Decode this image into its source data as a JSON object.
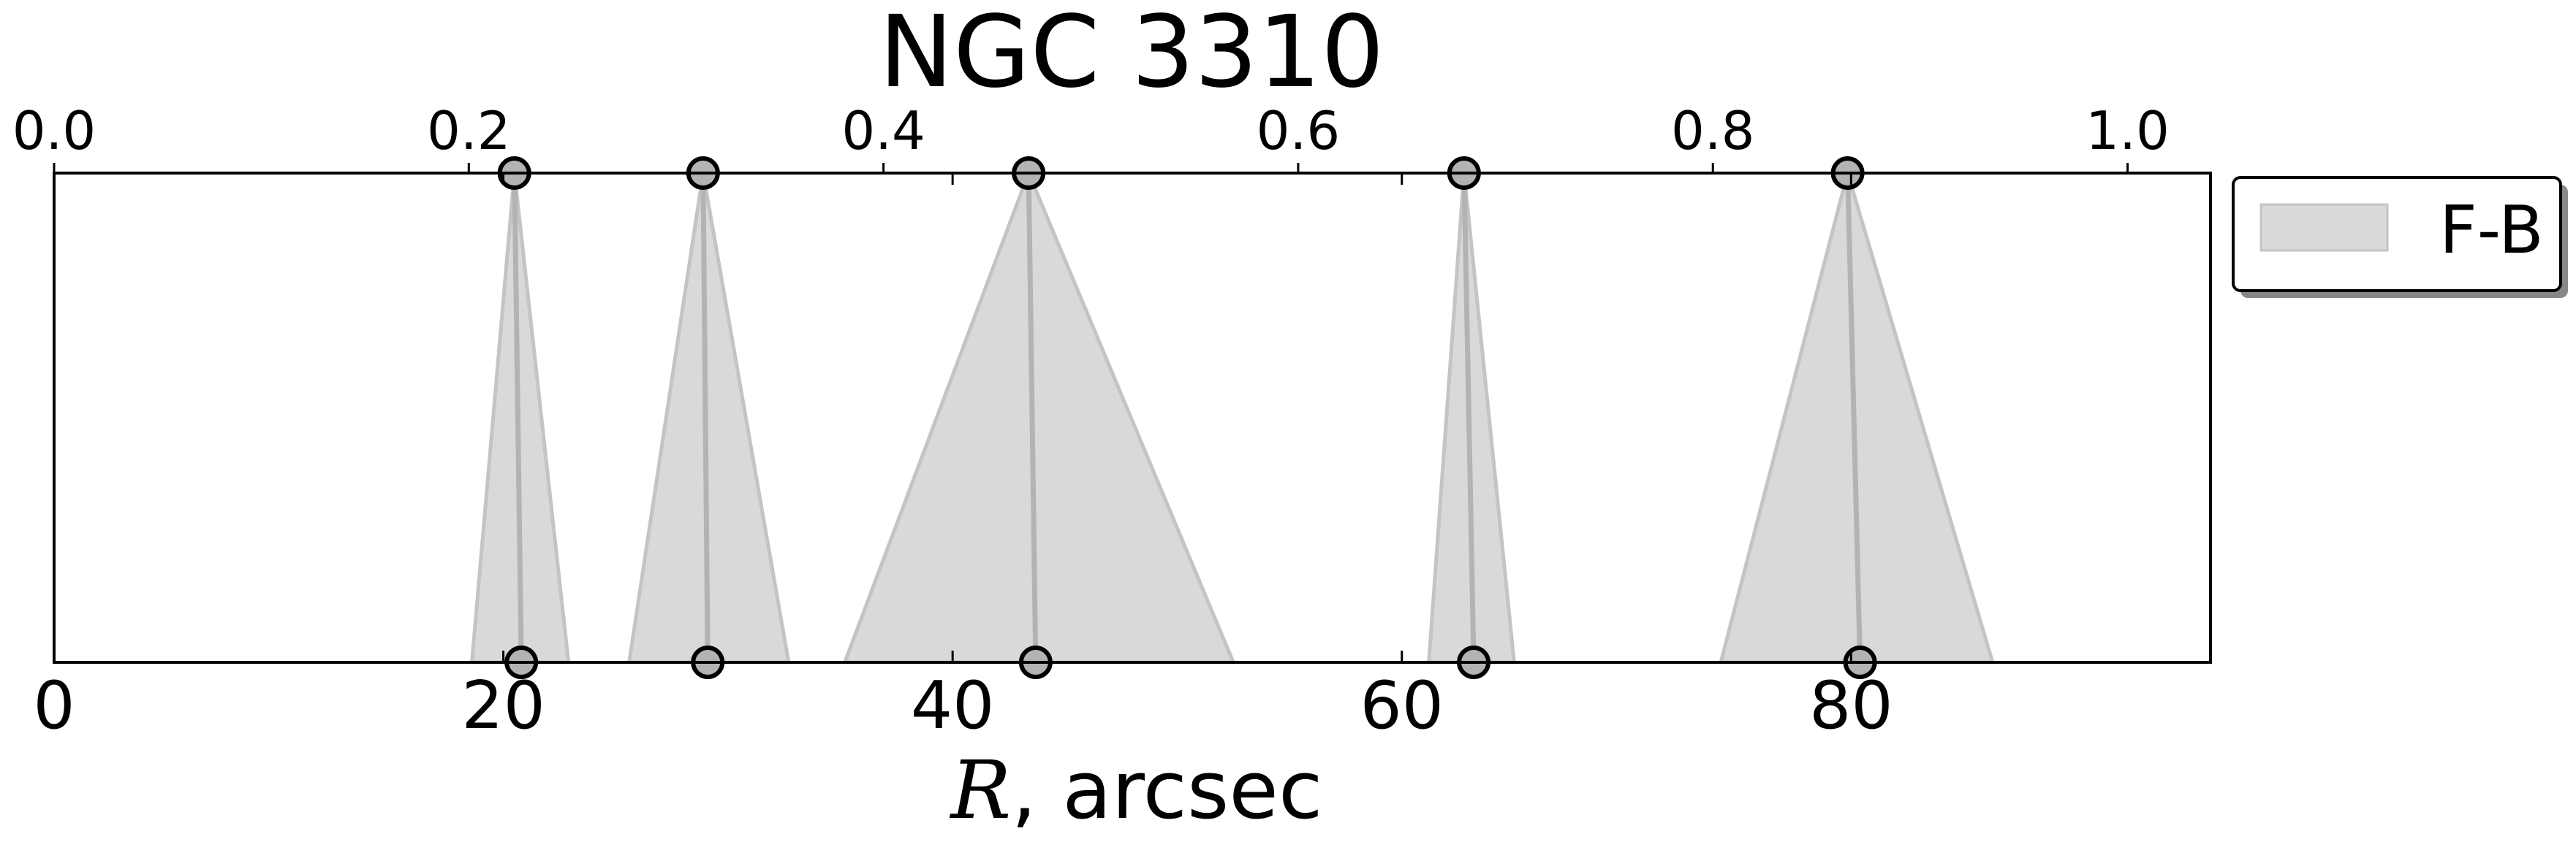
{
  "chart_data": {
    "type": "area",
    "title": "NGC 3310",
    "xlabel": {
      "symbol": "R",
      "rest": ", arcsec"
    },
    "xlim": [
      0,
      96
    ],
    "top_axis": {
      "xlim": [
        0.0,
        1.04
      ],
      "ticks": [
        0.0,
        0.2,
        0.4,
        0.6,
        0.8,
        1.0
      ],
      "tick_labels": [
        "0.0",
        "0.2",
        "0.4",
        "0.6",
        "0.8",
        "1.0"
      ]
    },
    "bottom_axis": {
      "ticks": [
        0,
        20,
        40,
        60,
        80
      ],
      "tick_labels": [
        "0",
        "20",
        "40",
        "60",
        "80"
      ]
    },
    "series": [
      {
        "name": "F-B",
        "color": "#d9d9d9",
        "edge_color": "#c4c4c4",
        "points": [
          {
            "top": 0.222,
            "bottom": 20.8,
            "low": 18.6,
            "high": 22.9
          },
          {
            "top": 0.313,
            "bottom": 29.1,
            "low": 25.6,
            "high": 32.7
          },
          {
            "top": 0.47,
            "bottom": 43.7,
            "low": 35.2,
            "high": 52.5
          },
          {
            "top": 0.68,
            "bottom": 63.2,
            "low": 61.2,
            "high": 65.0
          },
          {
            "top": 0.865,
            "bottom": 80.4,
            "low": 74.2,
            "high": 86.3
          }
        ]
      }
    ],
    "marker_color": "#b3b3b3",
    "legend": {
      "position": "outside-right-top",
      "entries": [
        "F-B"
      ]
    },
    "grid": false
  }
}
